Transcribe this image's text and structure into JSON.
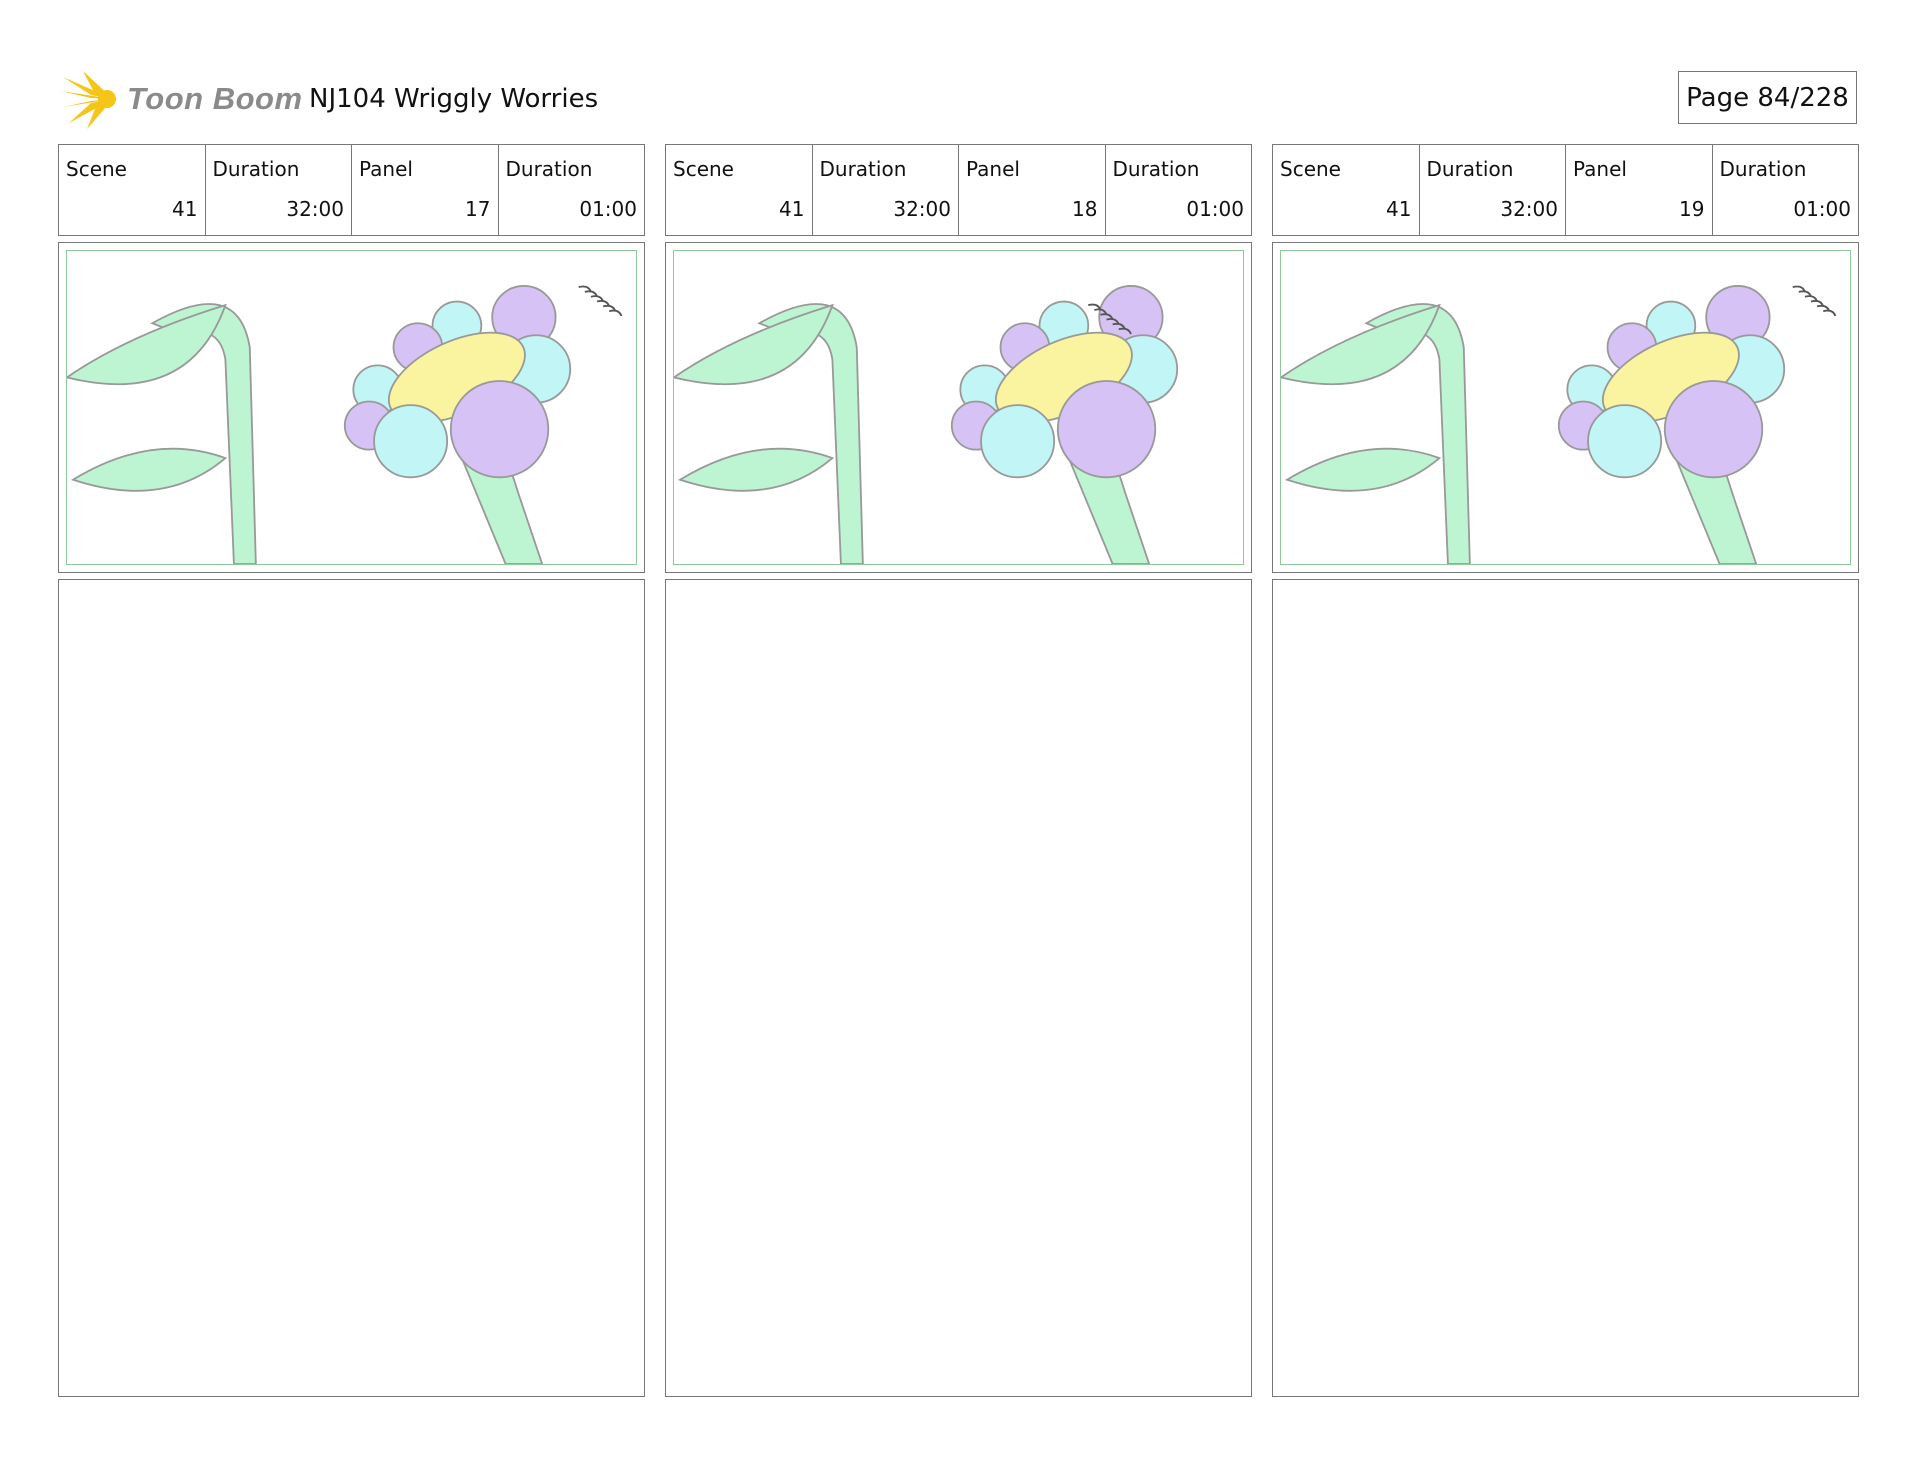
{
  "header": {
    "logo_text": "Toon Boom",
    "project_title": "NJ104 Wriggly Worries",
    "page_label": "Page  84/228"
  },
  "labels": {
    "scene": "Scene",
    "duration": "Duration",
    "panel": "Panel",
    "panel_duration": "Duration"
  },
  "panels": [
    {
      "scene": "41",
      "scene_duration": "32:00",
      "panel": "17",
      "panel_duration": "01:00",
      "notes": ""
    },
    {
      "scene": "41",
      "scene_duration": "32:00",
      "panel": "18",
      "panel_duration": "01:00",
      "notes": ""
    },
    {
      "scene": "41",
      "scene_duration": "32:00",
      "panel": "19",
      "panel_duration": "01:00",
      "notes": ""
    }
  ],
  "colors": {
    "leaf": "#bdf5d3",
    "petal_purple": "#d7c2f5",
    "petal_cyan": "#c2f5f5",
    "center": "#faf3a0",
    "frame": "#8fc89a",
    "logo_star": "#f5c518"
  }
}
